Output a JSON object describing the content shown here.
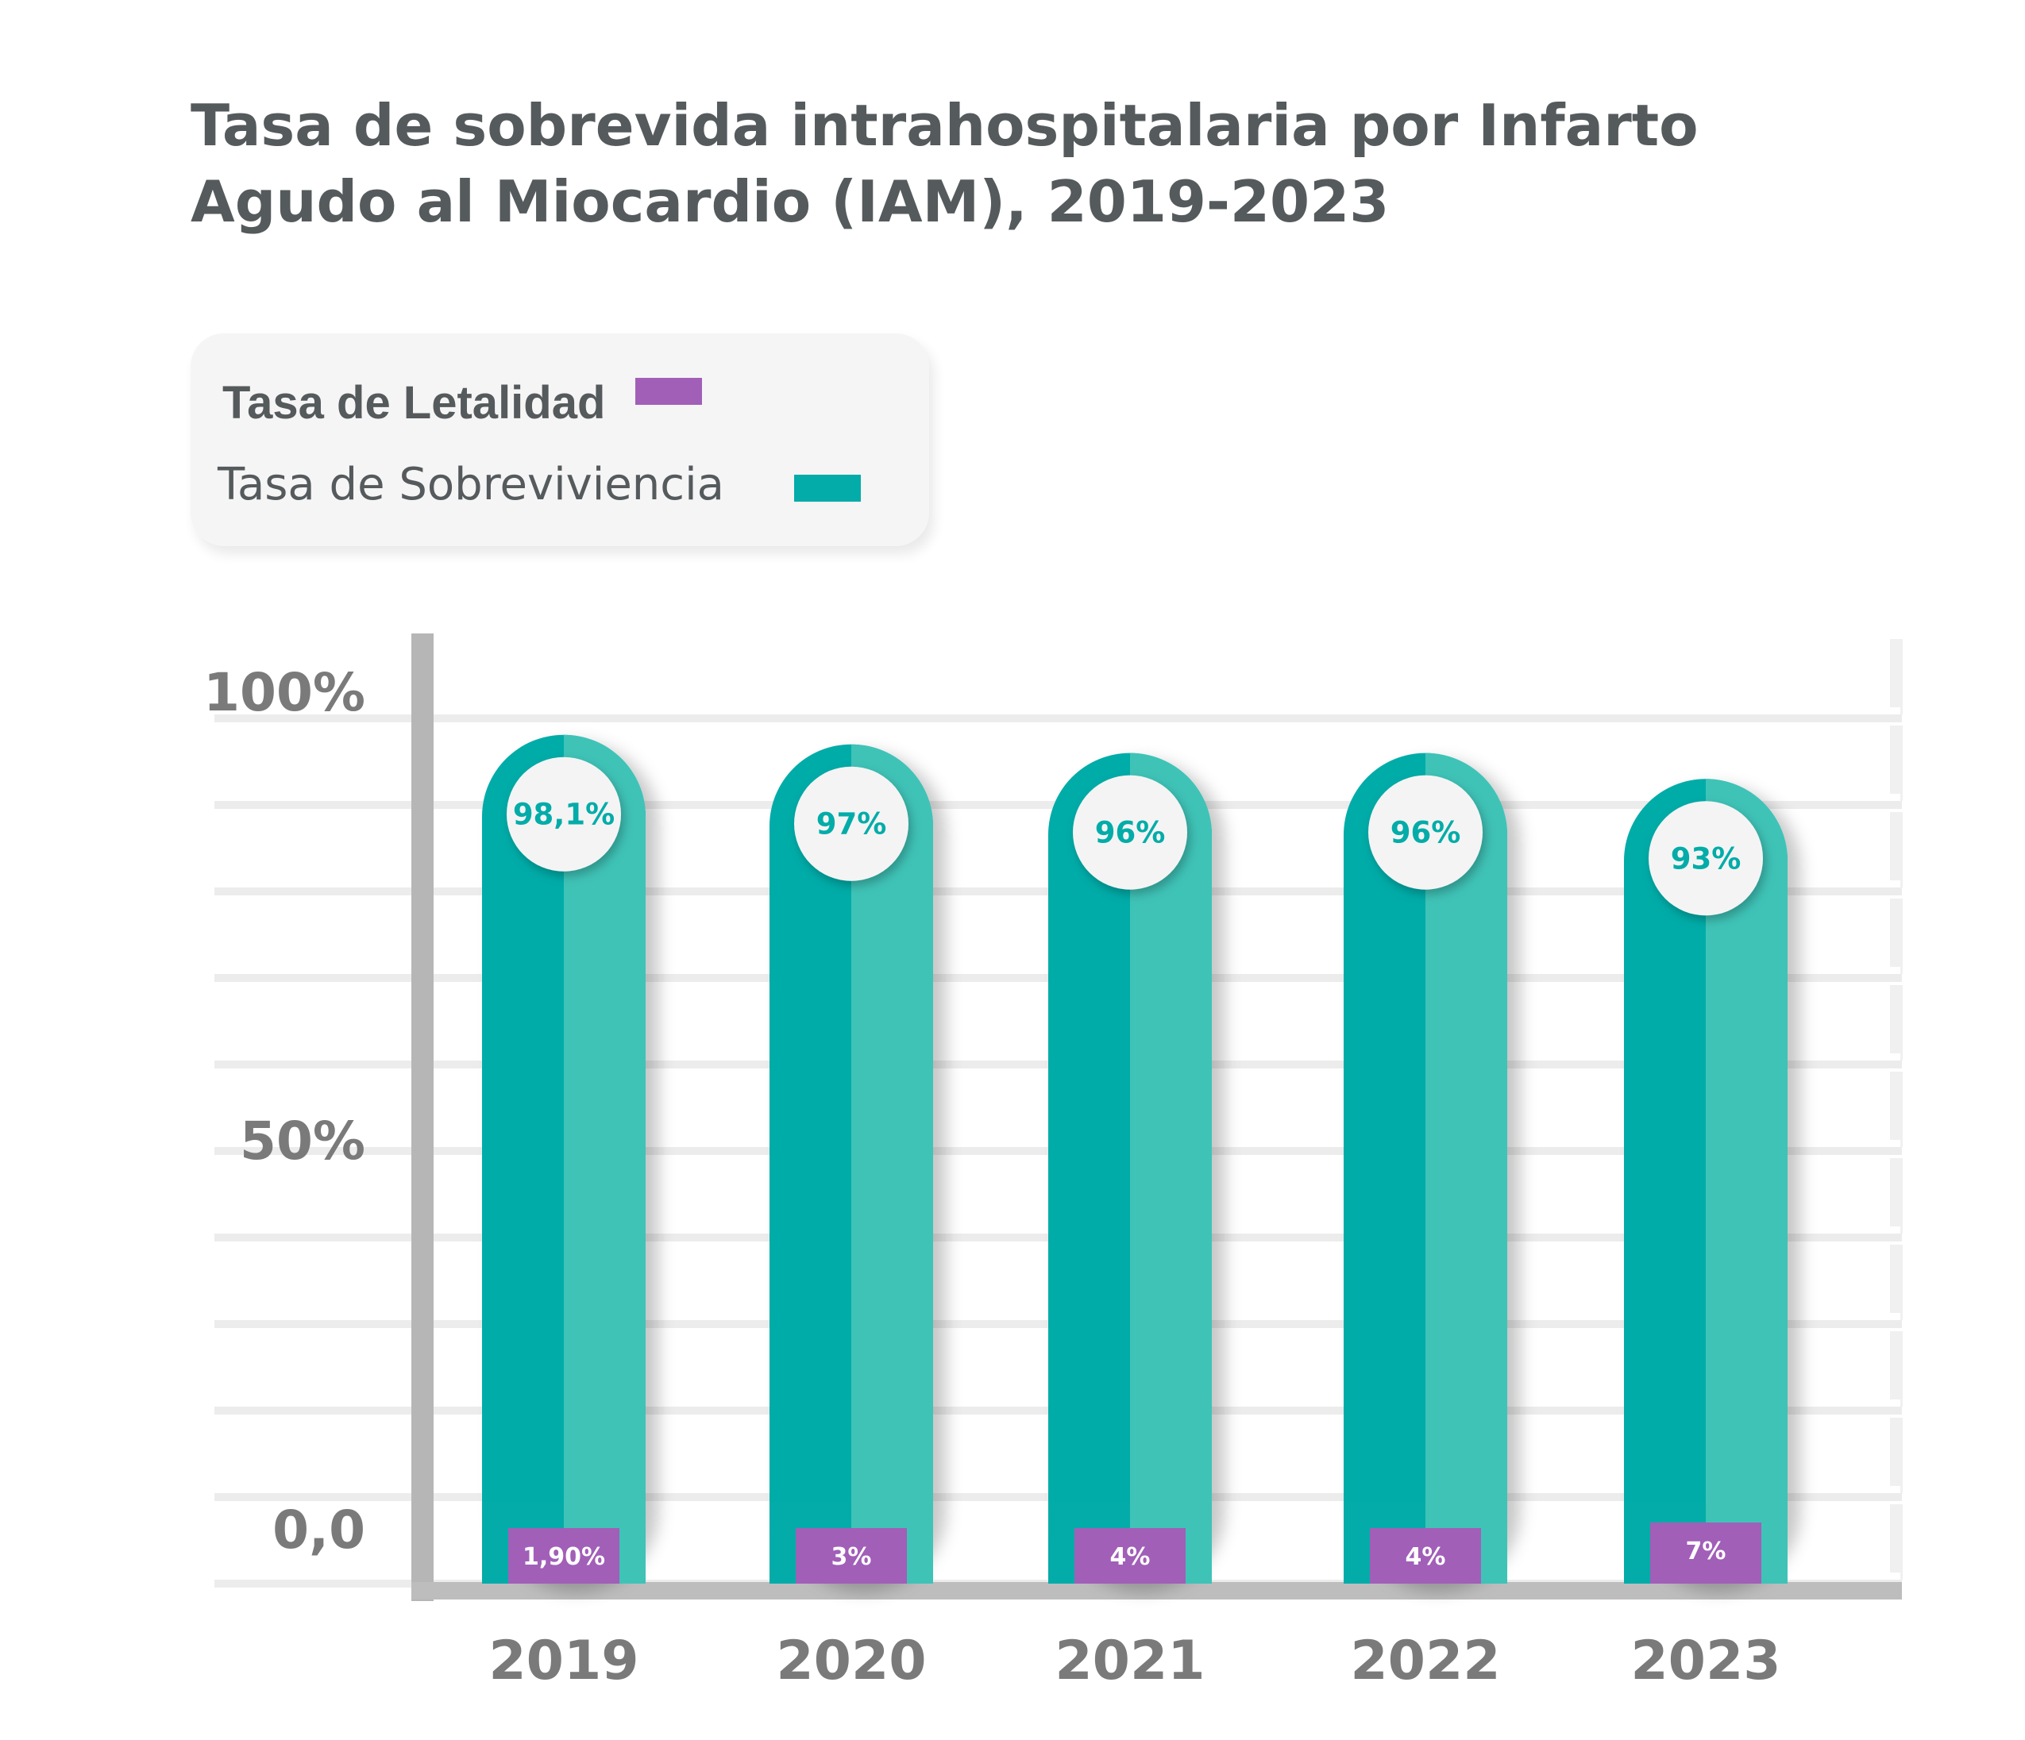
{
  "colors": {
    "survival_dark": "#03aca8",
    "survival_light": "#3fc3b7",
    "lethality": "#a15fb8",
    "text_gray": "#555a5c",
    "axis_gray": "#b6b6b6",
    "bubble": "#f4f4f4"
  },
  "chart_data": {
    "type": "bar",
    "title": "Tasa de sobrevida intrahospitalaria por Infarto Agudo al Miocardio (IAM), 2019-2023",
    "categories": [
      "2019",
      "2020",
      "2021",
      "2022",
      "2023"
    ],
    "series": [
      {
        "name": "Tasa de Sobreviviencia",
        "values": [
          98.1,
          97,
          96,
          96,
          93
        ],
        "labels": [
          "98,1%",
          "97%",
          "96%",
          "96%",
          "93%"
        ]
      },
      {
        "name": "Tasa de Letalidad",
        "values": [
          1.9,
          3,
          4,
          4,
          7
        ],
        "labels": [
          "1,90%",
          "3%",
          "4%",
          "4%",
          "7%"
        ]
      }
    ],
    "yticks": [
      {
        "value": 100,
        "label": "100%"
      },
      {
        "value": 50,
        "label": "50%"
      },
      {
        "value": 0,
        "label": "0,0"
      }
    ],
    "ylim": [
      0,
      100
    ],
    "legend": {
      "position": "top-left",
      "items": [
        {
          "label": "Tasa de Letalidad",
          "color": "#a15fb8"
        },
        {
          "label": "Tasa de Sobreviviencia",
          "color": "#03aca8"
        }
      ]
    },
    "grid": true
  }
}
